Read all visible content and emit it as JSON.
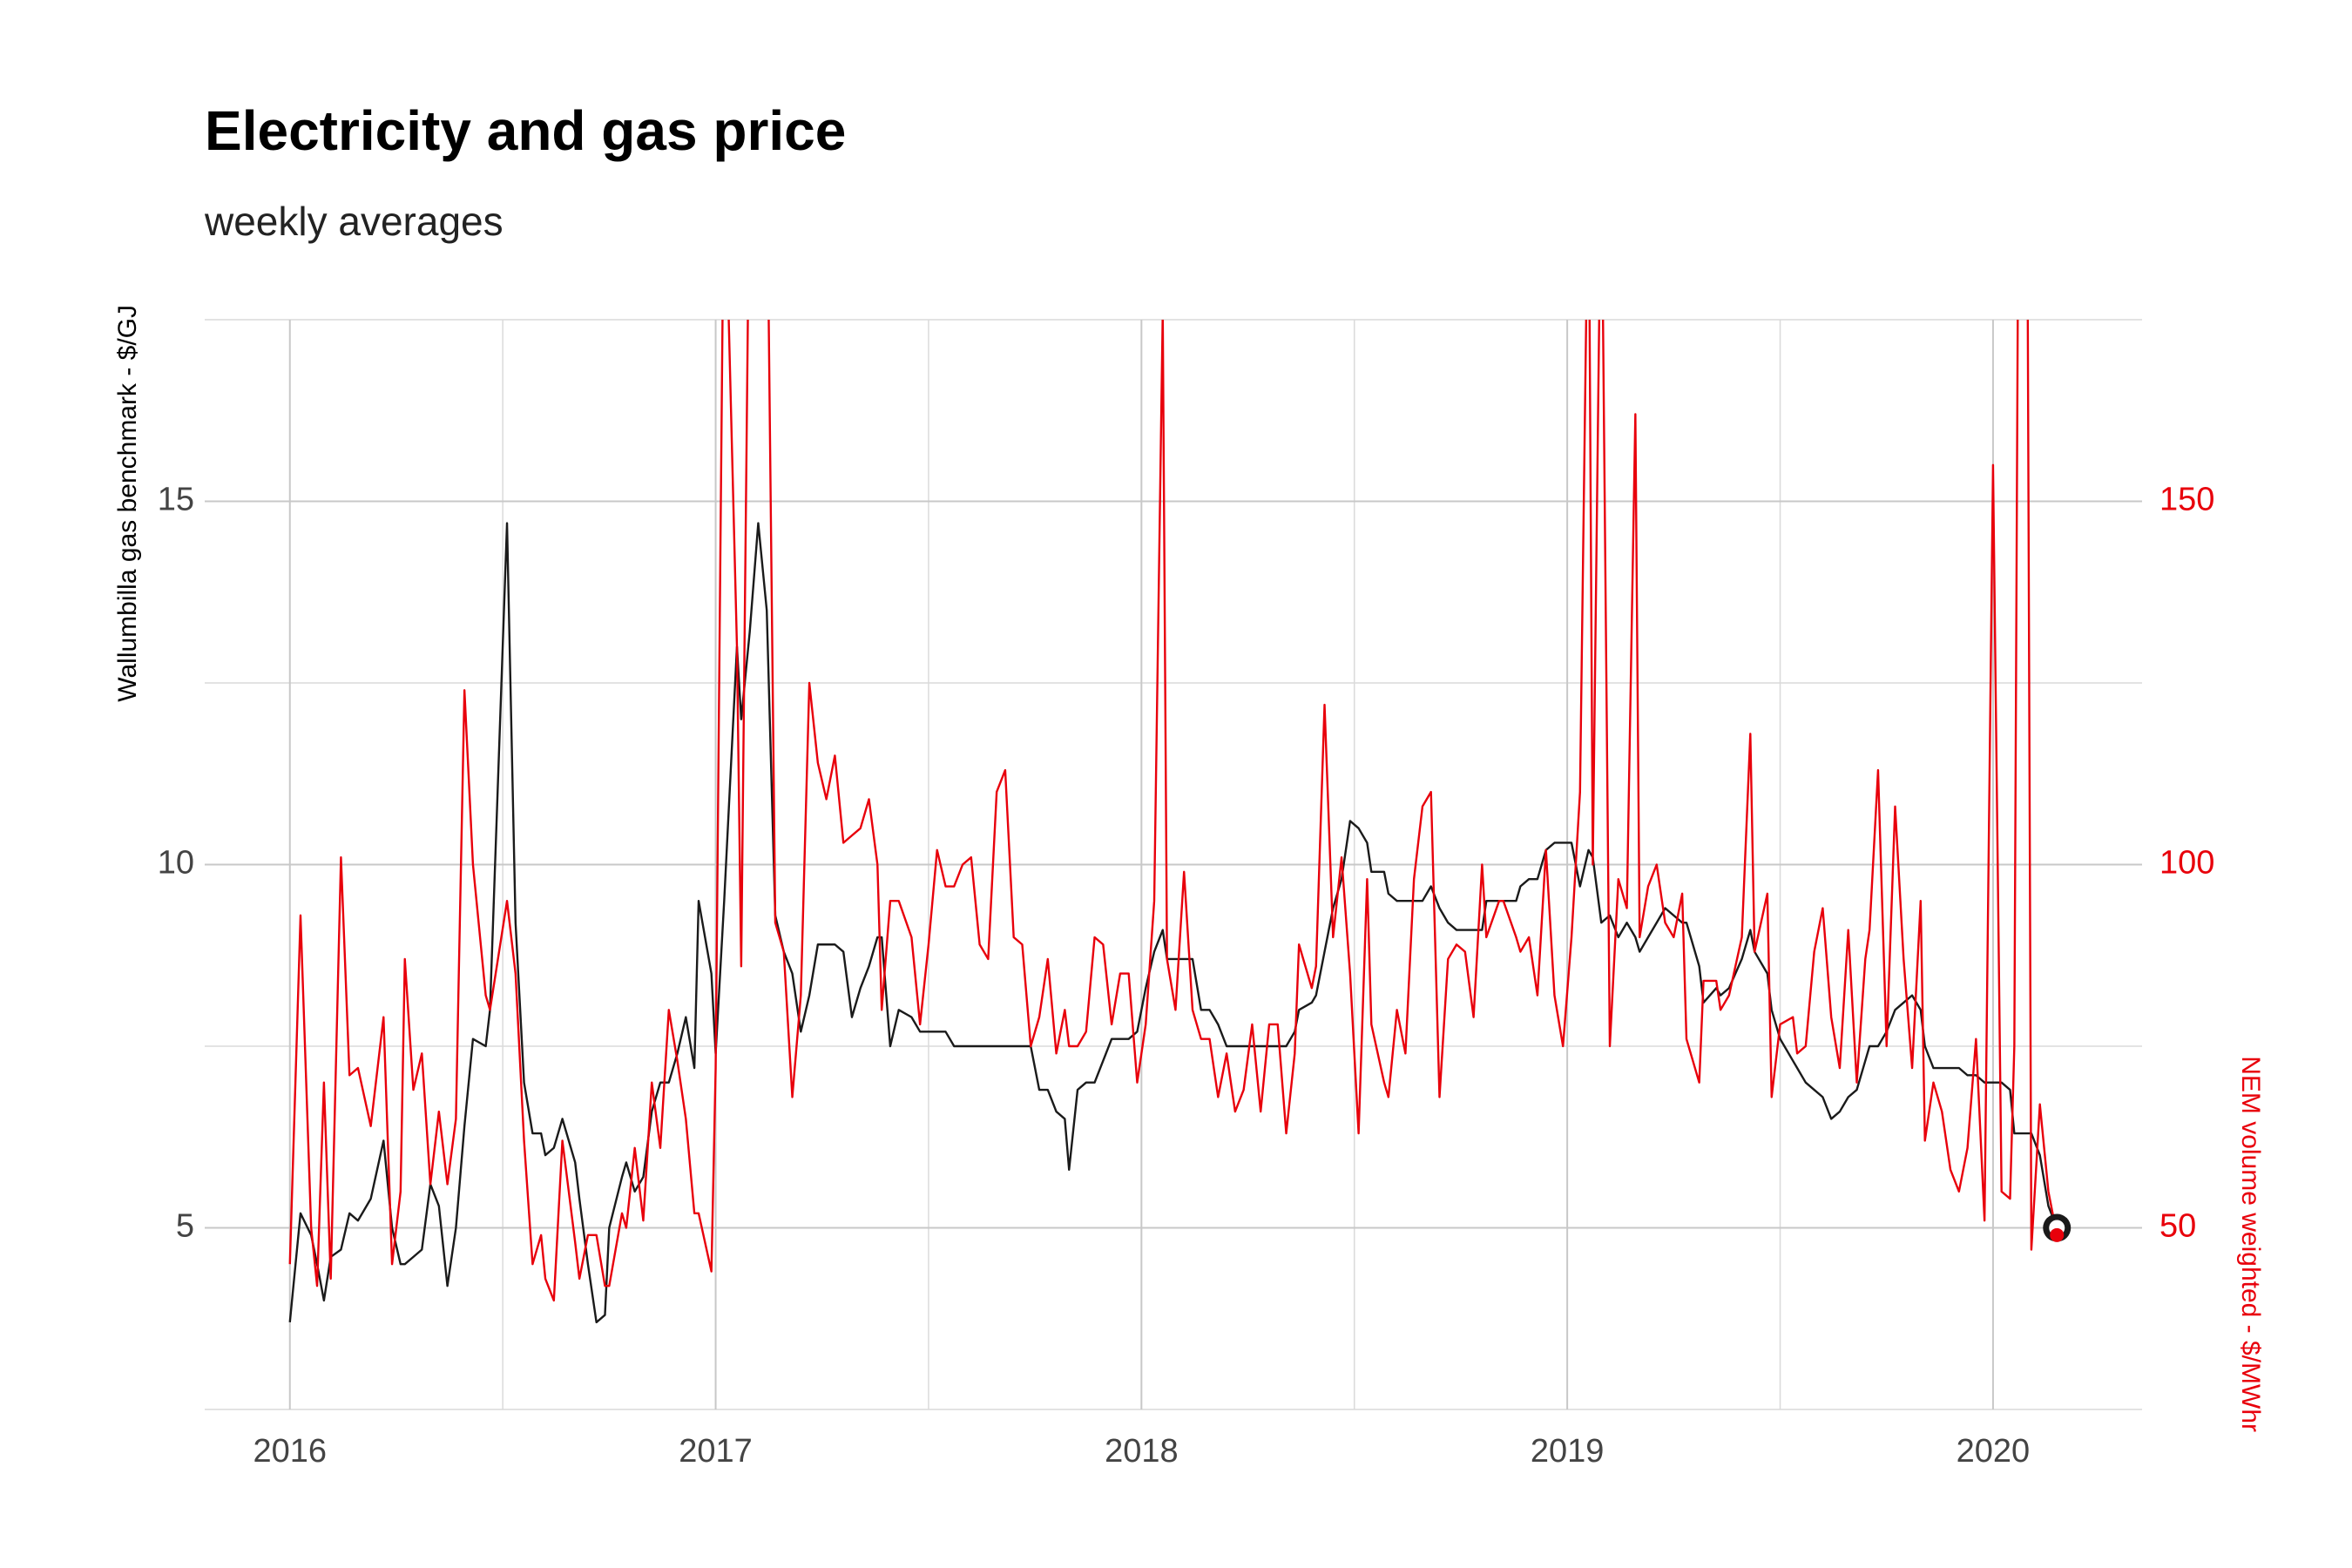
{
  "chart_data": {
    "type": "line",
    "title": "Electricity and gas price",
    "subtitle": "weekly averages",
    "y_label": "Wallumbilla gas benchmark - $/GJ",
    "y2_label": "NEM volume weighted - $/MWhr",
    "x": [
      2016.0,
      2016.025,
      2016.05,
      2016.064,
      2016.08,
      2016.096,
      2016.12,
      2016.14,
      2016.16,
      2016.19,
      2016.22,
      2016.24,
      2016.26,
      2016.27,
      2016.29,
      2016.31,
      2016.33,
      2016.35,
      2016.37,
      2016.39,
      2016.41,
      2016.43,
      2016.46,
      2016.47,
      2016.51,
      2016.53,
      2016.55,
      2016.57,
      2016.59,
      2016.6,
      2016.62,
      2016.64,
      2016.67,
      2016.68,
      2016.7,
      2016.72,
      2016.74,
      2016.75,
      2016.78,
      2016.79,
      2016.81,
      2016.83,
      2016.85,
      2016.87,
      2016.89,
      2016.91,
      2016.93,
      2016.95,
      2016.96,
      2016.99,
      2017.0,
      2017.02,
      2017.05,
      2017.06,
      2017.08,
      2017.1,
      2017.12,
      2017.14,
      2017.16,
      2017.18,
      2017.2,
      2017.22,
      2017.24,
      2017.26,
      2017.28,
      2017.3,
      2017.32,
      2017.34,
      2017.36,
      2017.38,
      2017.39,
      2017.41,
      2017.43,
      2017.46,
      2017.48,
      2017.5,
      2017.52,
      2017.54,
      2017.56,
      2017.58,
      2017.6,
      2017.62,
      2017.64,
      2017.66,
      2017.68,
      2017.7,
      2017.72,
      2017.74,
      2017.76,
      2017.78,
      2017.8,
      2017.82,
      2017.83,
      2017.85,
      2017.87,
      2017.89,
      2017.91,
      2017.93,
      2017.95,
      2017.97,
      2017.99,
      2018.01,
      2018.03,
      2018.05,
      2018.06,
      2018.08,
      2018.1,
      2018.12,
      2018.14,
      2018.16,
      2018.18,
      2018.2,
      2018.22,
      2018.24,
      2018.26,
      2018.28,
      2018.3,
      2018.32,
      2018.34,
      2018.36,
      2018.37,
      2018.4,
      2018.41,
      2018.43,
      2018.45,
      2018.47,
      2018.49,
      2018.51,
      2018.53,
      2018.54,
      2018.57,
      2018.58,
      2018.6,
      2018.62,
      2018.64,
      2018.66,
      2018.68,
      2018.7,
      2018.72,
      2018.74,
      2018.76,
      2018.78,
      2018.8,
      2018.81,
      2018.84,
      2018.85,
      2018.88,
      2018.89,
      2018.91,
      2018.93,
      2018.95,
      2018.97,
      2018.99,
      2019.01,
      2019.03,
      2019.05,
      2019.06,
      2019.08,
      2019.1,
      2019.12,
      2019.14,
      2019.16,
      2019.17,
      2019.19,
      2019.21,
      2019.23,
      2019.25,
      2019.27,
      2019.28,
      2019.31,
      2019.32,
      2019.35,
      2019.36,
      2019.38,
      2019.41,
      2019.43,
      2019.44,
      2019.47,
      2019.48,
      2019.5,
      2019.53,
      2019.54,
      2019.56,
      2019.58,
      2019.6,
      2019.62,
      2019.64,
      2019.66,
      2019.68,
      2019.7,
      2019.71,
      2019.73,
      2019.75,
      2019.77,
      2019.79,
      2019.81,
      2019.83,
      2019.84,
      2019.86,
      2019.88,
      2019.9,
      2019.92,
      2019.94,
      2019.96,
      2019.98,
      2020.0,
      2020.02,
      2020.04,
      2020.05,
      2020.06,
      2020.08,
      2020.09,
      2020.11,
      2020.13,
      2020.15
    ],
    "series": [
      {
        "color": "#1a1a1a",
        "axis": "y",
        "values": [
          3.7,
          5.2,
          4.9,
          4.5,
          4.0,
          4.6,
          4.7,
          5.2,
          5.1,
          5.4,
          6.2,
          5.0,
          4.5,
          4.5,
          4.6,
          4.7,
          5.6,
          5.3,
          4.2,
          5.0,
          6.4,
          7.6,
          7.5,
          8.0,
          14.7,
          9.2,
          7.0,
          6.3,
          6.3,
          6.0,
          6.1,
          6.5,
          5.9,
          5.4,
          4.5,
          3.7,
          3.8,
          5.0,
          5.7,
          5.9,
          5.5,
          5.7,
          6.6,
          7.0,
          7.0,
          7.4,
          7.9,
          7.2,
          9.5,
          8.5,
          7.4,
          9.5,
          13.0,
          12.0,
          13.2,
          14.7,
          13.5,
          9.3,
          8.8,
          8.5,
          7.7,
          8.2,
          8.9,
          8.9,
          8.9,
          8.8,
          7.9,
          8.3,
          8.6,
          9.0,
          9.0,
          7.5,
          8.0,
          7.9,
          7.7,
          7.7,
          7.7,
          7.7,
          7.5,
          7.5,
          7.5,
          7.5,
          7.5,
          7.5,
          7.5,
          7.5,
          7.5,
          7.5,
          6.9,
          6.9,
          6.6,
          6.5,
          5.8,
          6.9,
          7.0,
          7.0,
          7.3,
          7.6,
          7.6,
          7.6,
          7.7,
          8.3,
          8.8,
          9.1,
          8.7,
          8.7,
          8.7,
          8.7,
          8.0,
          8.0,
          7.8,
          7.5,
          7.5,
          7.5,
          7.5,
          7.5,
          7.5,
          7.5,
          7.5,
          7.7,
          8.0,
          8.1,
          8.2,
          8.8,
          9.4,
          9.8,
          10.6,
          10.5,
          10.3,
          9.9,
          9.9,
          9.6,
          9.5,
          9.5,
          9.5,
          9.5,
          9.7,
          9.4,
          9.2,
          9.1,
          9.1,
          9.1,
          9.1,
          9.5,
          9.5,
          9.5,
          9.5,
          9.7,
          9.8,
          9.8,
          10.2,
          10.3,
          10.3,
          10.3,
          9.7,
          10.2,
          10.1,
          9.2,
          9.3,
          9.0,
          9.2,
          9.0,
          8.8,
          9.0,
          9.2,
          9.4,
          9.3,
          9.2,
          9.2,
          8.6,
          8.1,
          8.3,
          8.2,
          8.3,
          8.7,
          9.1,
          8.8,
          8.5,
          8.0,
          7.6,
          7.3,
          7.2,
          7.0,
          6.9,
          6.8,
          6.5,
          6.6,
          6.8,
          6.9,
          7.3,
          7.5,
          7.5,
          7.7,
          8.0,
          8.1,
          8.2,
          8.0,
          7.5,
          7.2,
          7.2,
          7.2,
          7.2,
          7.1,
          7.1,
          7.0,
          7.0,
          7.0,
          6.9,
          6.3,
          6.3,
          6.3,
          6.3,
          6.0,
          5.3,
          5.0
        ]
      },
      {
        "color": "#e8000b",
        "axis": "y2",
        "values": [
          45,
          93,
          50,
          42,
          70,
          43,
          101,
          71,
          72,
          64,
          79,
          45,
          55,
          87,
          69,
          74,
          56,
          66,
          56,
          65,
          124,
          100,
          82,
          80,
          95,
          85,
          62,
          45,
          49,
          43,
          40,
          62,
          48,
          43,
          49,
          49,
          42,
          42,
          52,
          50,
          61,
          51,
          70,
          61,
          80,
          73,
          65,
          52,
          52,
          44,
          72,
          200,
          130,
          86,
          200,
          180,
          200,
          92,
          88,
          68,
          82,
          125,
          114,
          109,
          115,
          103,
          104,
          105,
          109,
          100,
          80,
          95,
          95,
          90,
          78,
          89,
          102,
          97,
          97,
          100,
          101,
          89,
          87,
          110,
          113,
          90,
          89,
          75,
          79,
          87,
          74,
          80,
          75,
          75,
          77,
          90,
          89,
          78,
          85,
          85,
          70,
          78,
          95,
          176,
          87,
          80,
          99,
          80,
          76,
          76,
          68,
          74,
          66,
          69,
          78,
          66,
          78,
          78,
          63,
          74,
          89,
          83,
          86,
          122,
          90,
          101,
          85,
          63,
          98,
          78,
          70,
          68,
          80,
          74,
          98,
          108,
          110,
          68,
          87,
          89,
          88,
          79,
          100,
          90,
          95,
          95,
          90,
          88,
          90,
          82,
          102,
          82,
          75,
          90,
          110,
          200,
          100,
          200,
          75,
          98,
          94,
          162,
          90,
          97,
          100,
          92,
          90,
          96,
          76,
          70,
          84,
          84,
          80,
          82,
          90,
          118,
          88,
          96,
          68,
          78,
          79,
          74,
          75,
          88,
          94,
          79,
          72,
          91,
          70,
          87,
          91,
          113,
          75,
          108,
          87,
          72,
          95,
          62,
          70,
          66,
          58,
          55,
          61,
          76,
          51,
          155,
          55,
          54,
          75,
          200,
          200,
          47,
          67,
          55,
          49
        ]
      }
    ],
    "xlim": [
      2015.8,
      2020.35
    ],
    "xticks": [
      2016,
      2017,
      2018,
      2019,
      2020
    ],
    "xminor": [
      2016.5,
      2017.5,
      2018.5,
      2019.5
    ],
    "ylim": [
      2.5,
      17.5
    ],
    "yticks": [
      5,
      10,
      15
    ],
    "yminor": [
      2.5,
      7.5,
      12.5,
      17.5
    ],
    "y2lim": [
      25,
      175
    ],
    "y2ticks": [
      50,
      100,
      150
    ],
    "grid": true,
    "end_points": true
  }
}
